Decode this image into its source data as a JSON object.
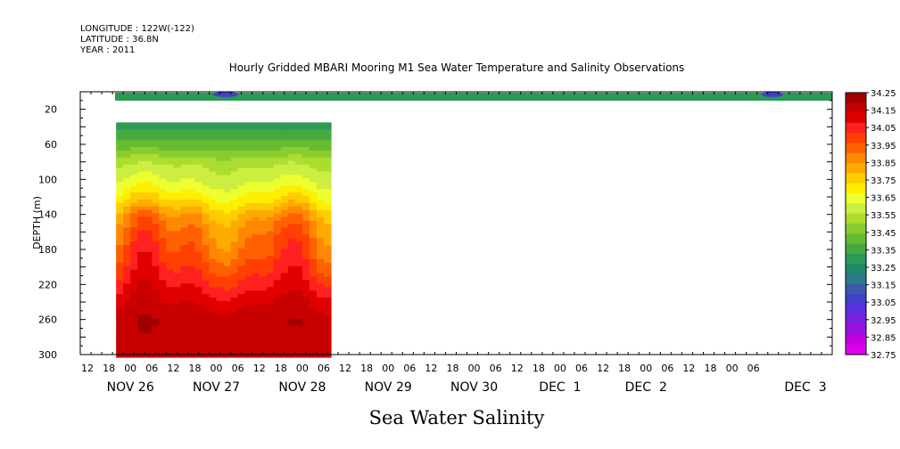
{
  "header": {
    "line1": "LONGITUDE : 122W(-122)",
    "line2": "LATITUDE : 36.8N",
    "line3": "YEAR : 2011"
  },
  "chart_data": {
    "type": "heatmap",
    "title": "Hourly Gridded MBARI Mooring M1 Sea Water Temperature and Salinity Observations",
    "xlabel": "Sea Water Salinity",
    "ylabel": "DEPTH (m)",
    "x_axis": {
      "range_hours": [
        -14,
        196
      ],
      "hour_tick_labels": [
        "12",
        "18",
        "00",
        "06",
        "12",
        "18",
        "00",
        "06",
        "12",
        "18",
        "00",
        "06",
        "12",
        "18",
        "00",
        "06",
        "12",
        "18",
        "00",
        "06",
        "12",
        "18",
        "00",
        "06",
        "12",
        "18",
        "00",
        "06",
        "12",
        "18",
        "00",
        "06"
      ],
      "day_labels": [
        "NOV 26",
        "NOV 27",
        "NOV 28",
        "NOV 29",
        "NOV 30",
        "DEC  1",
        "DEC  2",
        "DEC  3"
      ]
    },
    "y_axis": {
      "range": [
        300,
        0
      ],
      "tick_labels": [
        "20",
        "60",
        "100",
        "140",
        "180",
        "220",
        "260",
        "300"
      ]
    },
    "colorbar": {
      "levels": [
        "34.25",
        "34.15",
        "34.05",
        "33.95",
        "33.85",
        "33.75",
        "33.65",
        "33.55",
        "33.45",
        "33.35",
        "33.25",
        "33.15",
        "33.05",
        "32.95",
        "32.85",
        "32.75"
      ],
      "colors": [
        "#a00000",
        "#c80000",
        "#e00000",
        "#ff2020",
        "#ff4000",
        "#ff6000",
        "#ff8800",
        "#ffaa00",
        "#ffcc00",
        "#ffee00",
        "#eeff30",
        "#ccee40",
        "#aadd30",
        "#88cc30",
        "#66bb30",
        "#44aa40",
        "#2a9a55",
        "#1f8a6a",
        "#2a7a8a",
        "#3a5aa8",
        "#4040cc",
        "#5a30dd",
        "#7a20e0",
        "#9a10e0",
        "#c000e0",
        "#e000f0"
      ]
    },
    "surface_layer": {
      "depth_range_m": [
        5,
        10
      ],
      "time_range_hours": [
        -4,
        196
      ],
      "salinity_approx": 33.3
    },
    "profile_block": {
      "depth_range_m": [
        35,
        300
      ],
      "time_range_hours": [
        -4,
        56
      ],
      "depth_levels_m": [
        40,
        60,
        80,
        100,
        120,
        140,
        160,
        180,
        200,
        220,
        240,
        260,
        280,
        300
      ],
      "mean_salinity_profile": [
        33.32,
        33.42,
        33.55,
        33.62,
        33.72,
        33.86,
        33.93,
        33.97,
        34.02,
        34.08,
        34.14,
        34.18,
        34.18,
        34.17
      ]
    }
  }
}
